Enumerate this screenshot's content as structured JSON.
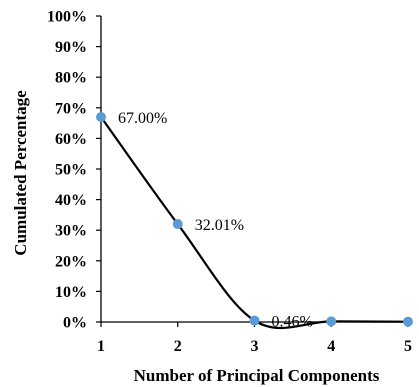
{
  "chart_data": {
    "type": "line",
    "x": [
      1,
      2,
      3,
      4,
      5
    ],
    "series": [
      {
        "values": [
          67.0,
          32.01,
          0.46,
          0.2,
          0.1
        ],
        "color": "#5b9bd5",
        "line_color": "#000000",
        "smooth": true,
        "data_labels": [
          "67.00%",
          "32.01%",
          "0.46%",
          "",
          ""
        ]
      }
    ],
    "xlabel": "Number of Principal Components",
    "ylabel": "Cumulated Percentage",
    "x_tick_labels": [
      "1",
      "2",
      "3",
      "4",
      "5"
    ],
    "y_tick_labels": [
      "0%",
      "10%",
      "20%",
      "30%",
      "40%",
      "50%",
      "60%",
      "70%",
      "80%",
      "90%",
      "100%"
    ],
    "xlim": [
      1,
      5
    ],
    "ylim": [
      0,
      100
    ],
    "grid": false,
    "legend": "none"
  }
}
